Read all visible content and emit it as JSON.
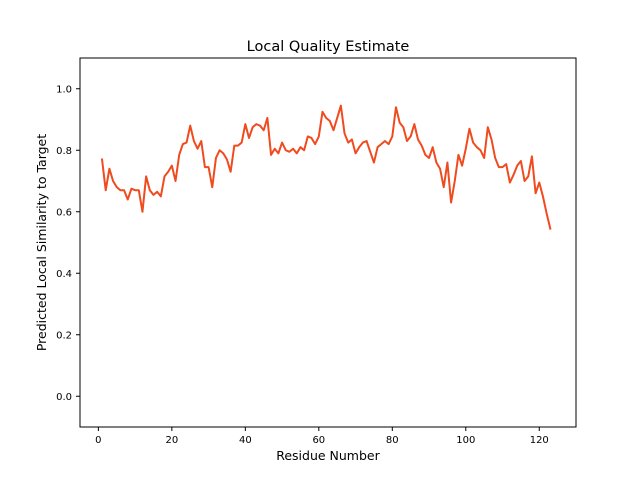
{
  "chart_data": {
    "type": "line",
    "title": "Local Quality Estimate",
    "xlabel": "Residue Number",
    "ylabel": "Predicted Local Similarity to Target",
    "xlim": [
      -5,
      130
    ],
    "ylim": [
      -0.1,
      1.1
    ],
    "xticks": [
      0,
      20,
      40,
      60,
      80,
      100,
      120
    ],
    "yticks": [
      0.0,
      0.2,
      0.4,
      0.6,
      0.8,
      1.0
    ],
    "ytick_labels": [
      "0.0",
      "0.2",
      "0.4",
      "0.6",
      "0.8",
      "1.0"
    ],
    "grid": false,
    "line_color": "#f04b1e",
    "series": [
      {
        "x": [
          1,
          2,
          3,
          4,
          5,
          6,
          7,
          8,
          9,
          10,
          11,
          12,
          13,
          14,
          15,
          16,
          17,
          18,
          19,
          20,
          21,
          22,
          23,
          24,
          25,
          26,
          27,
          28,
          29,
          30,
          31,
          32,
          33,
          34,
          35,
          36,
          37,
          38,
          39,
          40,
          41,
          42,
          43,
          44,
          45,
          46,
          47,
          48,
          49,
          50,
          51,
          52,
          53,
          54,
          55,
          56,
          57,
          58,
          59,
          60,
          61,
          62,
          63,
          64,
          65,
          66,
          67,
          68,
          69,
          70,
          71,
          72,
          73,
          74,
          75,
          76,
          77,
          78,
          79,
          80,
          81,
          82,
          83,
          84,
          85,
          86,
          87,
          88,
          89,
          90,
          91,
          92,
          93,
          94,
          95,
          96,
          97,
          98,
          99,
          100,
          101,
          102,
          103,
          104,
          105,
          106,
          107,
          108,
          109,
          110,
          111,
          112,
          113,
          114,
          115,
          116,
          117,
          118,
          119,
          120,
          121,
          122,
          123
        ],
        "values": [
          0.77,
          0.67,
          0.74,
          0.7,
          0.68,
          0.67,
          0.67,
          0.64,
          0.675,
          0.67,
          0.67,
          0.6,
          0.715,
          0.67,
          0.655,
          0.665,
          0.65,
          0.715,
          0.73,
          0.75,
          0.7,
          0.785,
          0.82,
          0.825,
          0.88,
          0.83,
          0.805,
          0.83,
          0.745,
          0.745,
          0.68,
          0.775,
          0.8,
          0.79,
          0.77,
          0.73,
          0.815,
          0.815,
          0.825,
          0.885,
          0.84,
          0.875,
          0.885,
          0.88,
          0.865,
          0.905,
          0.785,
          0.805,
          0.79,
          0.825,
          0.8,
          0.795,
          0.805,
          0.79,
          0.81,
          0.8,
          0.845,
          0.84,
          0.82,
          0.845,
          0.925,
          0.905,
          0.895,
          0.865,
          0.905,
          0.945,
          0.855,
          0.825,
          0.835,
          0.79,
          0.81,
          0.825,
          0.83,
          0.795,
          0.76,
          0.81,
          0.82,
          0.83,
          0.82,
          0.845,
          0.94,
          0.89,
          0.875,
          0.83,
          0.845,
          0.885,
          0.835,
          0.815,
          0.785,
          0.775,
          0.81,
          0.76,
          0.74,
          0.68,
          0.76,
          0.63,
          0.7,
          0.785,
          0.75,
          0.805,
          0.87,
          0.825,
          0.81,
          0.8,
          0.775,
          0.875,
          0.835,
          0.775,
          0.745,
          0.745,
          0.755,
          0.695,
          0.72,
          0.75,
          0.765,
          0.7,
          0.715,
          0.78,
          0.66,
          0.695,
          0.65,
          0.595,
          0.545
        ]
      }
    ]
  }
}
